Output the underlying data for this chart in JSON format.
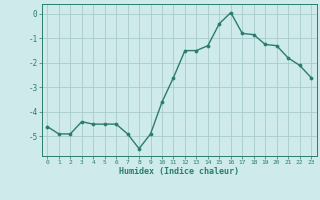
{
  "x": [
    0,
    1,
    2,
    3,
    4,
    5,
    6,
    7,
    8,
    9,
    10,
    11,
    12,
    13,
    14,
    15,
    16,
    17,
    18,
    19,
    20,
    21,
    22,
    23
  ],
  "y": [
    -4.6,
    -4.9,
    -4.9,
    -4.4,
    -4.5,
    -4.5,
    -4.5,
    -4.9,
    -5.5,
    -4.9,
    -3.6,
    -2.6,
    -1.5,
    -1.5,
    -1.3,
    -0.4,
    0.05,
    -0.8,
    -0.85,
    -1.25,
    -1.3,
    -1.8,
    -2.1,
    -2.6
  ],
  "line_color": "#2a7d6e",
  "marker": "o",
  "markersize": 2.2,
  "linewidth": 1.0,
  "xlabel": "Humidex (Indice chaleur)",
  "xlim": [
    -0.5,
    23.5
  ],
  "ylim": [
    -5.8,
    0.4
  ],
  "yticks": [
    0,
    -1,
    -2,
    -3,
    -4,
    -5
  ],
  "xticks": [
    0,
    1,
    2,
    3,
    4,
    5,
    6,
    7,
    8,
    9,
    10,
    11,
    12,
    13,
    14,
    15,
    16,
    17,
    18,
    19,
    20,
    21,
    22,
    23
  ],
  "bg_color": "#ceeaea",
  "grid_color": "#aacccc",
  "tick_color": "#2a7d6e",
  "label_color": "#2a7d6e"
}
